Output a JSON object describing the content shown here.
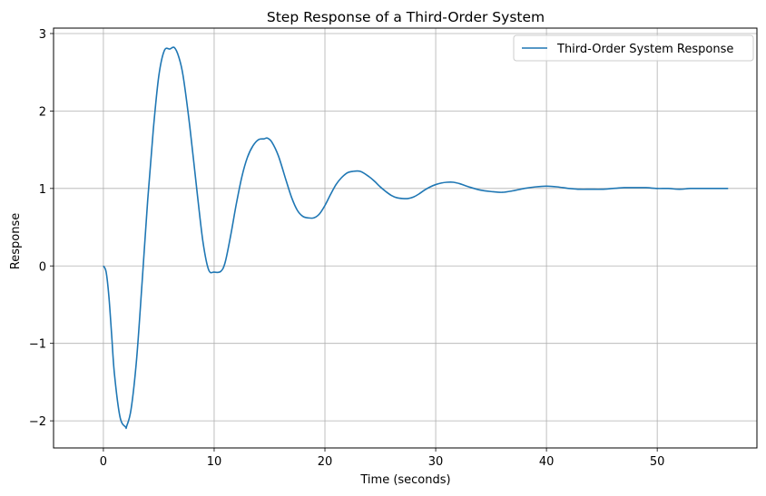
{
  "chart_data": {
    "type": "line",
    "title": "Step Response of a Third-Order System",
    "xlabel": "Time (seconds)",
    "ylabel": "Response",
    "xlim": [
      -4.5,
      59
    ],
    "ylim": [
      -2.35,
      3.07
    ],
    "xticks": [
      0,
      10,
      20,
      30,
      40,
      50
    ],
    "yticks": [
      -2,
      -1,
      0,
      1,
      2,
      3
    ],
    "ytick_labels": [
      "−2",
      "−1",
      "0",
      "1",
      "2",
      "3"
    ],
    "grid": true,
    "legend_position": "top-right",
    "colors": {
      "series": "#1f77b4",
      "grid": "#b0b0b0",
      "frame": "#000000"
    },
    "series": [
      {
        "name": "Third-Order System Response",
        "x": [
          0,
          0.25,
          0.5,
          0.75,
          1.0,
          1.5,
          2.0,
          2.1,
          2.5,
          3.0,
          3.5,
          4.0,
          4.5,
          5.0,
          5.5,
          6.0,
          6.4,
          6.8,
          7.2,
          7.8,
          8.5,
          9.0,
          9.5,
          10.0,
          10.6,
          11.0,
          11.5,
          12.0,
          12.5,
          13.0,
          13.5,
          14.0,
          14.5,
          14.8,
          15.2,
          15.8,
          16.5,
          17.0,
          17.5,
          18.0,
          18.5,
          19.0,
          19.5,
          20.0,
          20.5,
          21.0,
          21.5,
          22.0,
          22.5,
          23.2,
          24.0,
          24.5,
          25.0,
          25.5,
          26.0,
          26.5,
          27.0,
          27.5,
          28.0,
          28.5,
          29.0,
          29.5,
          30.0,
          30.5,
          31.0,
          31.6,
          32.2,
          33.0,
          34.0,
          35.0,
          36.0,
          37.0,
          38.0,
          39.0,
          40.0,
          41.0,
          42.0,
          43.0,
          44.0,
          45.0,
          46.0,
          47.0,
          48.0,
          49.0,
          50.0,
          51.0,
          52.0,
          53.0,
          54.0,
          55.0,
          56.4
        ],
        "y": [
          0,
          -0.08,
          -0.4,
          -0.9,
          -1.4,
          -1.95,
          -2.08,
          -2.07,
          -1.85,
          -1.2,
          -0.2,
          0.85,
          1.75,
          2.45,
          2.78,
          2.8,
          2.82,
          2.7,
          2.45,
          1.8,
          0.9,
          0.3,
          -0.05,
          -0.08,
          -0.07,
          0.05,
          0.4,
          0.8,
          1.15,
          1.4,
          1.55,
          1.63,
          1.64,
          1.65,
          1.6,
          1.42,
          1.1,
          0.88,
          0.72,
          0.64,
          0.62,
          0.62,
          0.67,
          0.78,
          0.92,
          1.05,
          1.14,
          1.2,
          1.22,
          1.22,
          1.15,
          1.09,
          1.02,
          0.96,
          0.91,
          0.88,
          0.87,
          0.87,
          0.89,
          0.93,
          0.98,
          1.02,
          1.05,
          1.07,
          1.08,
          1.08,
          1.06,
          1.02,
          0.98,
          0.96,
          0.95,
          0.97,
          1.0,
          1.02,
          1.03,
          1.02,
          1.0,
          0.99,
          0.99,
          0.99,
          1.0,
          1.01,
          1.01,
          1.01,
          1.0,
          1.0,
          0.99,
          1.0,
          1.0,
          1.0,
          1.0
        ]
      }
    ]
  }
}
